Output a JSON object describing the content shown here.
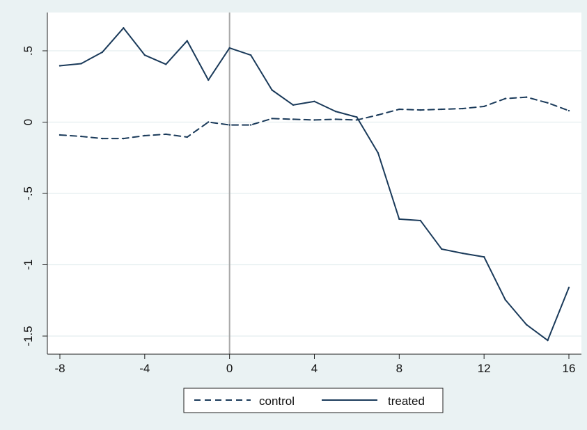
{
  "chart_data": {
    "type": "line",
    "title": "",
    "xlabel": "",
    "ylabel": "",
    "xlim": [
      -8,
      16
    ],
    "ylim": [
      -1.55,
      0.7
    ],
    "x_ticks": [
      -8,
      -4,
      0,
      4,
      8,
      12,
      16
    ],
    "x_tick_labels": [
      "-8",
      "-4",
      "0",
      "4",
      "8",
      "12",
      "16"
    ],
    "y_ticks": [
      -1.5,
      -1,
      -0.5,
      0,
      0.5
    ],
    "y_tick_labels": [
      "-1.5",
      "-1",
      "-.5",
      "0",
      ".5"
    ],
    "grid": true,
    "reference_line_x": 0,
    "legend_position": "bottom",
    "x": [
      -8,
      -7,
      -6,
      -5,
      -4,
      -3,
      -2,
      -1,
      0,
      1,
      2,
      3,
      4,
      5,
      6,
      7,
      8,
      9,
      10,
      11,
      12,
      13,
      14,
      15,
      16
    ],
    "series": [
      {
        "name": "control",
        "style": "dashed",
        "values": [
          -0.09,
          -0.1,
          -0.115,
          -0.115,
          -0.095,
          -0.085,
          -0.105,
          0.0,
          -0.02,
          -0.02,
          0.025,
          0.02,
          0.015,
          0.02,
          0.015,
          0.05,
          0.09,
          0.085,
          0.09,
          0.095,
          0.11,
          0.165,
          0.175,
          0.135,
          0.08
        ]
      },
      {
        "name": "treated",
        "style": "solid",
        "values": [
          0.395,
          0.41,
          0.49,
          0.66,
          0.47,
          0.405,
          0.57,
          0.295,
          0.52,
          0.47,
          0.225,
          0.12,
          0.145,
          0.075,
          0.035,
          -0.215,
          -0.68,
          -0.69,
          -0.89,
          -0.92,
          -0.945,
          -1.245,
          -1.42,
          -1.53,
          -1.16
        ]
      }
    ],
    "colors": {
      "line": "#1a3a5a",
      "outer_background": "#eaf2f3",
      "plot_background": "#ffffff",
      "grid": "#e3edef",
      "reference_line": "#a8a8a8"
    }
  }
}
